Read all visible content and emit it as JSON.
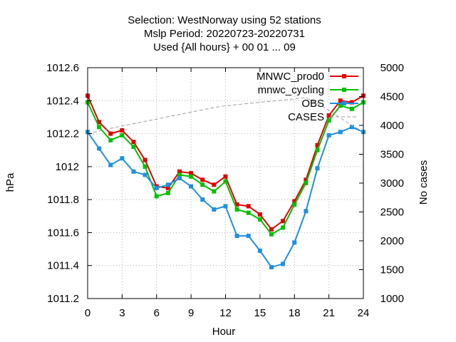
{
  "chart_data": {
    "type": "line",
    "title": [
      "Selection: WestNorway using    52 stations",
      "Mslp   Period: 20220723-20220731",
      "Used {All hours} + 00 01 ... 09"
    ],
    "xlabel": "Hour",
    "ylabel": "hPa",
    "y2label": "No cases",
    "xlim": [
      0,
      24
    ],
    "ylim": [
      1011.2,
      1012.6
    ],
    "y2lim": [
      1000,
      5000
    ],
    "xticks": [
      "0",
      "3",
      "6",
      "9",
      "12",
      "15",
      "18",
      "21",
      "24"
    ],
    "yticks": [
      "1011.2",
      "1011.4",
      "1011.6",
      "1011.8",
      "1012",
      "1012.2",
      "1012.4",
      "1012.6"
    ],
    "y2ticks": [
      "1000",
      "1500",
      "2000",
      "2500",
      "3000",
      "3500",
      "4000",
      "4500",
      "5000"
    ],
    "grid": true,
    "legend_position": "top-right",
    "x": [
      0,
      1,
      2,
      3,
      4,
      5,
      6,
      7,
      8,
      9,
      10,
      11,
      12,
      13,
      14,
      15,
      16,
      17,
      18,
      19,
      20,
      21,
      22,
      23,
      24
    ],
    "series": [
      {
        "name": "MNWC_prod0",
        "color": "#e00000",
        "axis": "left",
        "marker": "square",
        "values": [
          1012.43,
          1012.27,
          1012.2,
          1012.22,
          1012.15,
          1012.04,
          1011.88,
          1011.87,
          1011.97,
          1011.96,
          1011.92,
          1011.89,
          1011.94,
          1011.77,
          1011.76,
          1011.71,
          1011.62,
          1011.67,
          1011.79,
          1011.92,
          1012.13,
          1012.31,
          1012.4,
          1012.39,
          1012.43
        ]
      },
      {
        "name": "mnwc_cycling",
        "color": "#00c000",
        "axis": "left",
        "marker": "square",
        "values": [
          1012.39,
          1012.24,
          1012.16,
          1012.19,
          1012.12,
          1012.0,
          1011.82,
          1011.84,
          1011.95,
          1011.94,
          1011.89,
          1011.85,
          1011.91,
          1011.74,
          1011.72,
          1011.68,
          1011.59,
          1011.63,
          1011.77,
          1011.9,
          1012.1,
          1012.28,
          1012.37,
          1012.35,
          1012.39
        ]
      },
      {
        "name": "OBS",
        "color": "#1e90e0",
        "axis": "left",
        "marker": "square",
        "values": [
          1012.21,
          1012.11,
          1012.01,
          1012.05,
          1011.97,
          1011.95,
          1011.87,
          1011.89,
          1011.93,
          1011.88,
          1011.8,
          1011.74,
          1011.76,
          1011.58,
          1011.58,
          1011.49,
          1011.39,
          1011.41,
          1011.54,
          1011.73,
          1011.99,
          1012.19,
          1012.21,
          1012.24,
          1012.21
        ]
      },
      {
        "name": "CASES",
        "color": "#a0a0a0",
        "axis": "right",
        "dashed": true,
        "values": [
          3860,
          3900,
          3950,
          3990,
          4030,
          4070,
          4110,
          4150,
          4190,
          4230,
          4270,
          4310,
          4340,
          4360,
          4380,
          4400,
          4420,
          4440,
          4460,
          4480,
          4380,
          4260,
          4130,
          4000,
          3890
        ]
      }
    ]
  }
}
